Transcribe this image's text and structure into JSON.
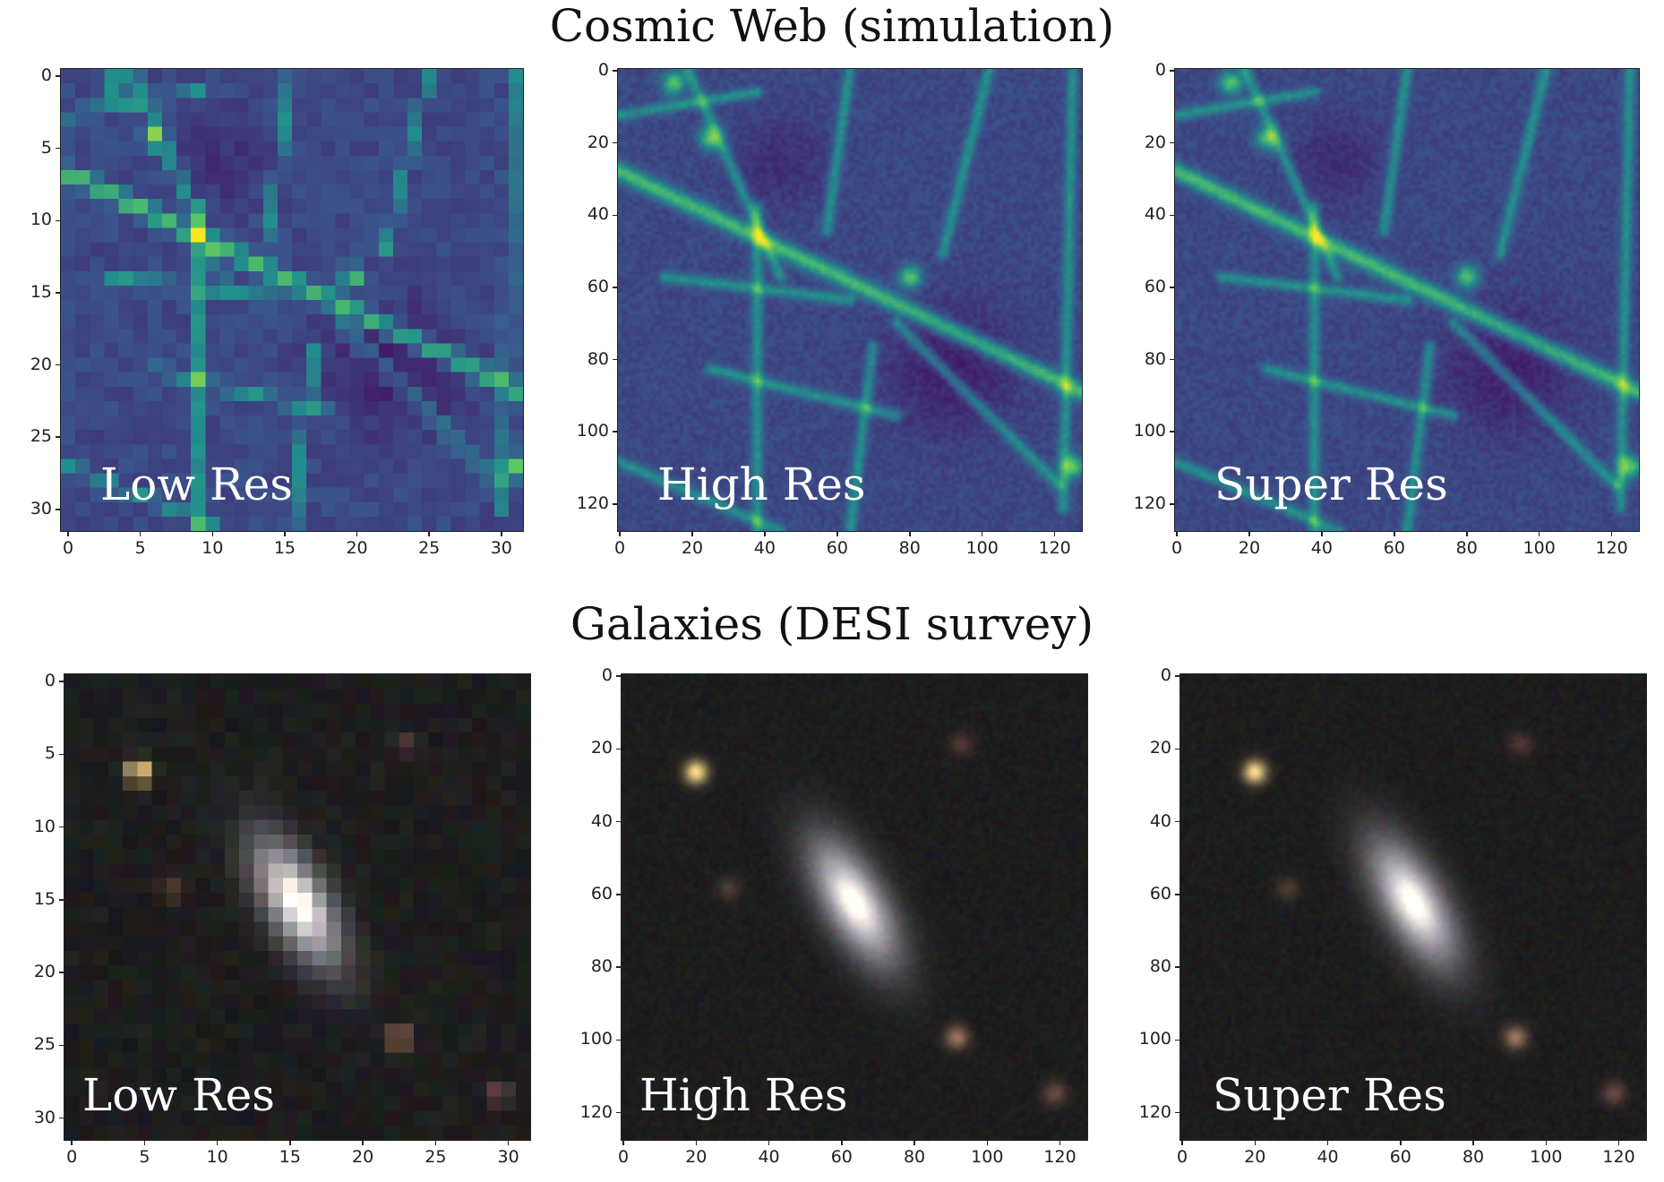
{
  "titles": {
    "top": "Cosmic Web (simulation)",
    "bottom": "Galaxies (DESI survey)"
  },
  "panels": [
    {
      "label": "Low Res",
      "xticks": [
        "0",
        "5",
        "10",
        "15",
        "20",
        "25",
        "30"
      ],
      "yticks": [
        "0",
        "5",
        "10",
        "15",
        "20",
        "25",
        "30"
      ],
      "pixels": 32,
      "type": "web"
    },
    {
      "label": "High Res",
      "xticks": [
        "0",
        "20",
        "40",
        "60",
        "80",
        "100",
        "120"
      ],
      "yticks": [
        "0",
        "20",
        "40",
        "60",
        "80",
        "100",
        "120"
      ],
      "pixels": 128,
      "type": "web"
    },
    {
      "label": "Super Res",
      "xticks": [
        "0",
        "20",
        "40",
        "60",
        "80",
        "100",
        "120"
      ],
      "yticks": [
        "0",
        "20",
        "40",
        "60",
        "80",
        "100",
        "120"
      ],
      "pixels": 128,
      "type": "web"
    },
    {
      "label": "Low Res",
      "xticks": [
        "0",
        "5",
        "10",
        "15",
        "20",
        "25",
        "30"
      ],
      "yticks": [
        "0",
        "5",
        "10",
        "15",
        "20",
        "25",
        "30"
      ],
      "pixels": 32,
      "type": "galaxy"
    },
    {
      "label": "High Res",
      "xticks": [
        "0",
        "20",
        "40",
        "60",
        "80",
        "100",
        "120"
      ],
      "yticks": [
        "0",
        "20",
        "40",
        "60",
        "80",
        "100",
        "120"
      ],
      "pixels": 128,
      "type": "galaxy"
    },
    {
      "label": "Super Res",
      "xticks": [
        "0",
        "20",
        "40",
        "60",
        "80",
        "100",
        "120"
      ],
      "yticks": [
        "0",
        "20",
        "40",
        "60",
        "80",
        "100",
        "120"
      ],
      "pixels": 128,
      "type": "galaxy"
    }
  ],
  "colors": {
    "viridis_dark": "#3b1f66",
    "viridis_mid": "#2f6f8e",
    "viridis_bright": "#fde725",
    "sky": "#17181a"
  }
}
